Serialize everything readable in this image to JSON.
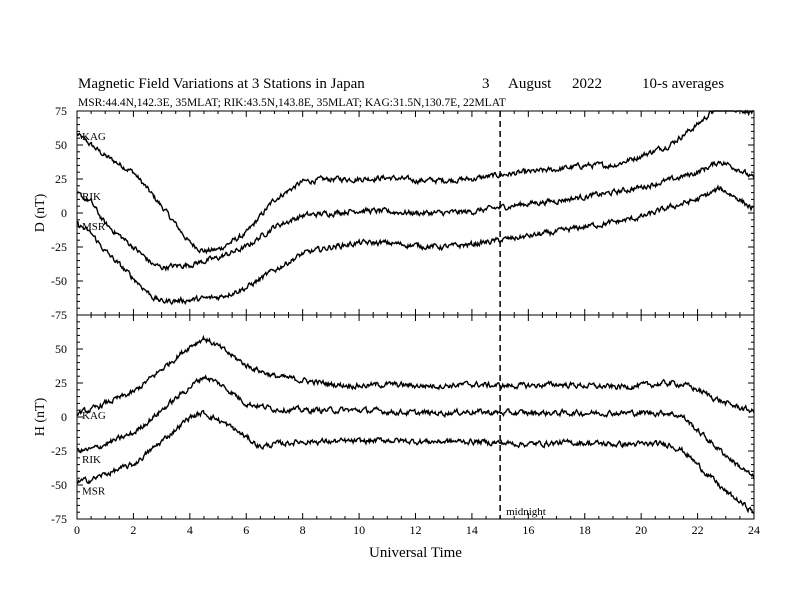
{
  "header": {
    "title": "Magnetic Field Variations at 3 Stations in Japan",
    "date_day": "3",
    "date_month": "August",
    "date_year": "2022",
    "averaging": "10-s averages",
    "stations_line": "MSR:44.4N,142.3E, 35MLAT;  RIK:43.5N,143.8E, 35MLAT;  KAG:31.5N,130.7E, 22MLAT"
  },
  "chart_data": [
    {
      "type": "line",
      "panel": "D",
      "ylabel": "D (nT)",
      "xlabel": "Universal Time",
      "xlim": [
        0,
        24
      ],
      "ylim": [
        -75,
        75
      ],
      "yticks": [
        75,
        50,
        25,
        0,
        -25,
        -50,
        -75
      ],
      "xticks": [
        0,
        2,
        4,
        6,
        8,
        10,
        12,
        14,
        16,
        18,
        20,
        22,
        24
      ],
      "annotation": {
        "x": 15,
        "style": "dashed"
      },
      "series": [
        {
          "name": "KAG",
          "x": [
            0,
            0.5,
            1,
            2,
            3,
            4,
            4.5,
            5,
            6,
            7,
            8,
            9,
            10,
            11,
            12,
            13,
            14,
            15,
            16,
            17,
            18,
            19,
            20,
            21,
            22,
            22.8,
            23.5,
            24
          ],
          "y": [
            58,
            50,
            42,
            30,
            5,
            -22,
            -28,
            -27,
            -15,
            10,
            23,
            25,
            25,
            26,
            24,
            24,
            25,
            28,
            30,
            32,
            35,
            35,
            42,
            50,
            65,
            80,
            76,
            74
          ]
        },
        {
          "name": "RIK",
          "x": [
            0,
            0.5,
            1,
            2,
            2.7,
            3,
            4,
            5,
            6,
            7,
            8,
            9,
            10,
            11,
            12,
            13,
            14,
            15,
            16,
            17,
            18,
            19,
            20,
            21,
            22,
            22.8,
            23.5,
            24
          ],
          "y": [
            14,
            8,
            -8,
            -25,
            -38,
            -40,
            -38,
            -33,
            -25,
            -10,
            -2,
            0,
            2,
            1,
            0,
            0,
            1,
            4,
            7,
            9,
            12,
            15,
            19,
            24,
            30,
            38,
            32,
            25
          ]
        },
        {
          "name": "MSR",
          "x": [
            0,
            0.5,
            1,
            2,
            2.7,
            3,
            4,
            5,
            6,
            7,
            8,
            9,
            10,
            11,
            12,
            13,
            14,
            15,
            16,
            17,
            18,
            19,
            20,
            21,
            22,
            22.8,
            23.5,
            24
          ],
          "y": [
            -8,
            -15,
            -28,
            -48,
            -62,
            -65,
            -64,
            -62,
            -55,
            -42,
            -30,
            -25,
            -22,
            -22,
            -24,
            -25,
            -23,
            -20,
            -17,
            -14,
            -10,
            -7,
            -3,
            4,
            10,
            18,
            10,
            2
          ]
        }
      ]
    },
    {
      "type": "line",
      "panel": "H",
      "ylabel": "H (nT)",
      "xlabel": "Universal Time",
      "xlim": [
        0,
        24
      ],
      "ylim": [
        -75,
        75
      ],
      "yticks": [
        75,
        50,
        25,
        0,
        -25,
        -50,
        -75
      ],
      "xticks": [
        0,
        2,
        4,
        6,
        8,
        10,
        12,
        14,
        16,
        18,
        20,
        22,
        24
      ],
      "annotation": {
        "x": 15,
        "style": "dashed",
        "text": "midnight"
      },
      "series": [
        {
          "name": "KAG",
          "x": [
            0,
            0.5,
            1,
            2,
            3,
            4,
            4.5,
            5,
            5.5,
            6,
            7,
            8,
            9,
            10,
            11,
            12,
            13,
            14,
            15,
            16,
            17,
            18,
            19,
            20,
            21,
            21.5,
            22,
            23,
            24
          ],
          "y": [
            3,
            5,
            10,
            18,
            35,
            52,
            58,
            52,
            45,
            38,
            30,
            27,
            24,
            23,
            24,
            23,
            23,
            24,
            23,
            23,
            24,
            23,
            22,
            23,
            25,
            24,
            20,
            10,
            4
          ]
        },
        {
          "name": "RIK",
          "x": [
            0,
            0.5,
            1,
            2,
            3,
            4,
            4.5,
            5,
            5.5,
            6,
            7,
            8,
            9,
            10,
            11,
            12,
            13,
            14,
            15,
            16,
            17,
            18,
            19,
            20,
            21,
            21.5,
            22,
            23,
            24
          ],
          "y": [
            -25,
            -24,
            -20,
            -12,
            5,
            22,
            30,
            25,
            18,
            10,
            6,
            5,
            5,
            5,
            4,
            3,
            3,
            4,
            3,
            3,
            3,
            3,
            3,
            3,
            3,
            0,
            -10,
            -28,
            -45
          ]
        },
        {
          "name": "MSR",
          "x": [
            0,
            0.5,
            1,
            2,
            3,
            4,
            4.5,
            5,
            5.5,
            6,
            6.5,
            7,
            8,
            9,
            10,
            11,
            12,
            13,
            14,
            15,
            16,
            17,
            18,
            19,
            20,
            21,
            21.5,
            22,
            23,
            24
          ],
          "y": [
            -48,
            -46,
            -42,
            -35,
            -18,
            0,
            3,
            -2,
            -8,
            -15,
            -22,
            -20,
            -18,
            -18,
            -18,
            -17,
            -18,
            -18,
            -18,
            -19,
            -20,
            -19,
            -19,
            -20,
            -20,
            -20,
            -25,
            -35,
            -55,
            -70
          ]
        }
      ]
    }
  ]
}
